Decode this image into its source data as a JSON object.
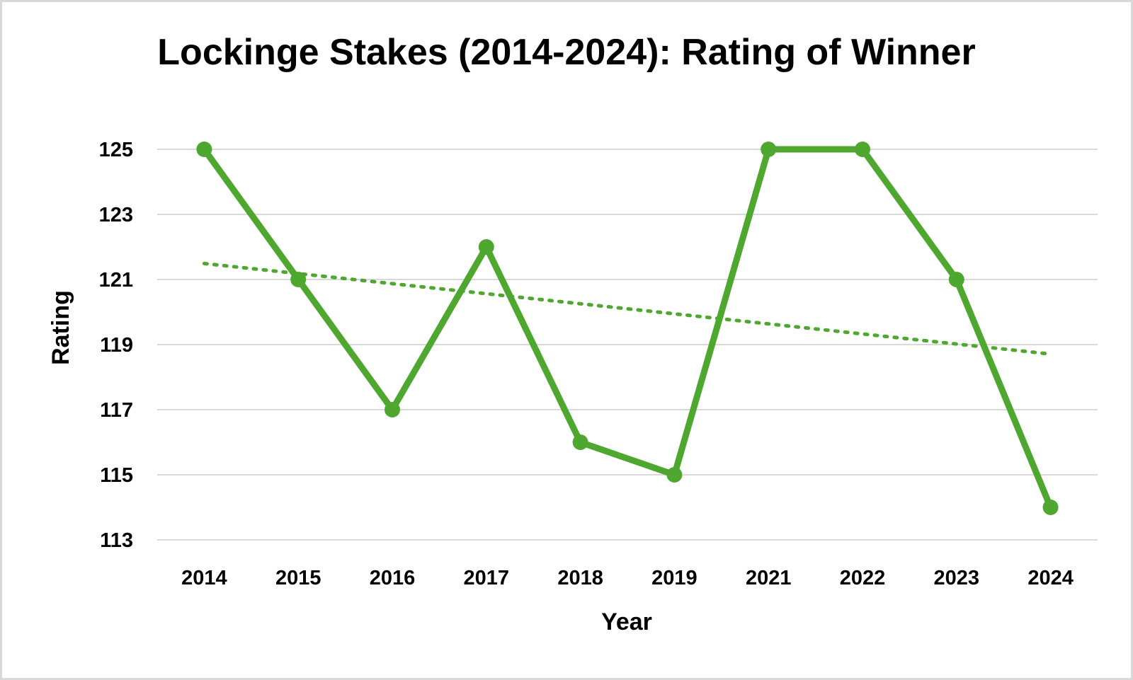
{
  "chart_data": {
    "type": "line",
    "title": "Lockinge Stakes (2014-2024): Rating of Winner",
    "xlabel": "Year",
    "ylabel": "Rating",
    "categories": [
      "2014",
      "2015",
      "2016",
      "2017",
      "2018",
      "2019",
      "2021",
      "2022",
      "2023",
      "2024"
    ],
    "series": [
      {
        "values": [
          125,
          121,
          117,
          122,
          116,
          115,
          125,
          125,
          121,
          114
        ],
        "color": "#4ea72e",
        "marker": "circle"
      }
    ],
    "trendline": {
      "type": "linear",
      "style": "dotted",
      "color": "#4ea72e"
    },
    "ylim": [
      113,
      125
    ],
    "yticks": [
      113,
      115,
      117,
      119,
      121,
      123,
      125
    ],
    "grid": true,
    "legend": "none"
  }
}
